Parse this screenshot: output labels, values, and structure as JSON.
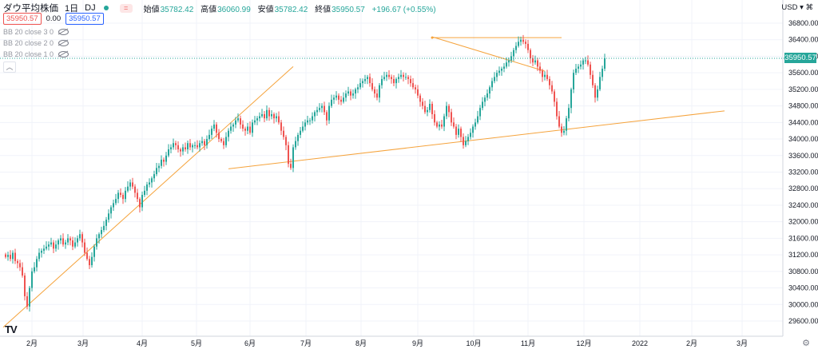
{
  "header": {
    "symbol": "ダウ平均株価",
    "interval": "1日",
    "exchange": "DJ",
    "mini_badge": "=",
    "ohlc": [
      {
        "key": "始値",
        "value": "35782.42"
      },
      {
        "key": "高値",
        "value": "36060.99"
      },
      {
        "key": "安値",
        "value": "35782.42"
      },
      {
        "key": "終値",
        "value": "35950.57"
      }
    ],
    "change": "+196.67 (+0.55%)"
  },
  "quote": {
    "sell": "35950.57",
    "spread": "0.00",
    "buy": "35950.57"
  },
  "indicators": [
    "BB 20 close 3 0",
    "BB 20 close 2 0",
    "BB 20 close 1 0"
  ],
  "axis_currency": "USD",
  "logo": "TV",
  "last_price_label": "35950.57",
  "colors": {
    "up": "#26a69a",
    "down": "#ef5350",
    "trendline": "#f5a33c",
    "grid": "#f0f3fa"
  },
  "chart_data": {
    "type": "candlestick",
    "x_tick_labels": [
      "2月",
      "3月",
      "4月",
      "5月",
      "6月",
      "7月",
      "8月",
      "9月",
      "10月",
      "11月",
      "12月",
      "2022",
      "2月",
      "3月"
    ],
    "y_tick_labels": [
      "29600.00",
      "30000.00",
      "30400.00",
      "30800.00",
      "31200.00",
      "31600.00",
      "32000.00",
      "32400.00",
      "32800.00",
      "33200.00",
      "33600.00",
      "34000.00",
      "34400.00",
      "34800.00",
      "35200.00",
      "35600.00",
      "36000.00",
      "36400.00",
      "36800.00"
    ],
    "ylim": [
      29300,
      37300
    ],
    "last_price": 35950.57,
    "closes": [
      31150,
      31200,
      31100,
      31250,
      31050,
      31000,
      30900,
      30700,
      30200,
      29950,
      30400,
      30800,
      30900,
      31100,
      31250,
      31300,
      31350,
      31400,
      31450,
      31500,
      31350,
      31450,
      31550,
      31600,
      31450,
      31500,
      31600,
      31550,
      31400,
      31500,
      31600,
      31700,
      31500,
      31250,
      31100,
      30950,
      31150,
      31400,
      31600,
      31700,
      31800,
      31900,
      32050,
      32200,
      32350,
      32450,
      32550,
      32700,
      32650,
      32550,
      32750,
      32850,
      32950,
      32850,
      32700,
      32550,
      32350,
      32650,
      32750,
      32900,
      32950,
      33050,
      33150,
      33300,
      33350,
      33500,
      33450,
      33600,
      33750,
      33800,
      33900,
      33850,
      33750,
      33700,
      33800,
      33750,
      33900,
      33800,
      33850,
      33850,
      33800,
      33900,
      33950,
      33850,
      34000,
      34100,
      34250,
      34350,
      34150,
      34000,
      33950,
      33850,
      34050,
      34200,
      34300,
      34350,
      34450,
      34500,
      34350,
      34250,
      34200,
      34300,
      34150,
      34400,
      34450,
      34500,
      34550,
      34600,
      34500,
      34700,
      34550,
      34600,
      34500,
      34550,
      34400,
      34200,
      34050,
      33850,
      33400,
      33300,
      33800,
      33950,
      34100,
      34200,
      34300,
      34400,
      34450,
      34450,
      34550,
      34650,
      34700,
      34750,
      34800,
      34650,
      34450,
      34800,
      34950,
      35000,
      35050,
      34950,
      34900,
      35000,
      35100,
      35150,
      35050,
      35100,
      35200,
      35250,
      35350,
      35400,
      35450,
      35500,
      35350,
      35200,
      35100,
      35000,
      35300,
      35450,
      35500,
      35550,
      35500,
      35450,
      35350,
      35450,
      35500,
      35550,
      35500,
      35500,
      35450,
      35350,
      35250,
      35200,
      35050,
      34900,
      34800,
      34650,
      34700,
      34850,
      34600,
      34400,
      34300,
      34350,
      34300,
      34550,
      34800,
      34650,
      34400,
      34300,
      34100,
      34250,
      34050,
      33850,
      33950,
      34050,
      34150,
      34300,
      34400,
      34550,
      34750,
      34900,
      35000,
      35100,
      35250,
      35400,
      35500,
      35600,
      35650,
      35700,
      35750,
      35850,
      35900,
      36000,
      36150,
      36250,
      36350,
      36400,
      36350,
      36300,
      36150,
      35950,
      35850,
      35900,
      35750,
      35650,
      35500,
      35550,
      35450,
      35300,
      35150,
      34900,
      34550,
      34300,
      34150,
      34200,
      34500,
      34750,
      35200,
      35600,
      35700,
      35750,
      35800,
      35900,
      35900,
      35800,
      35550,
      35300,
      35000,
      35200,
      35500,
      35700,
      35950.57
    ]
  },
  "trendlines": [
    {
      "from": {
        "bar": -1,
        "price": 29450
      },
      "to": {
        "bar": 120,
        "price": 35750
      }
    },
    {
      "from": {
        "bar": 93,
        "price": 33280
      },
      "to": {
        "bar": 300,
        "price": 34680
      }
    },
    {
      "from": {
        "bar": 178,
        "price": 36470
      },
      "to": {
        "bar": 225,
        "price": 35640
      }
    },
    {
      "from": {
        "bar": 178,
        "price": 36450
      },
      "to": {
        "bar": 232,
        "price": 36450
      }
    }
  ]
}
